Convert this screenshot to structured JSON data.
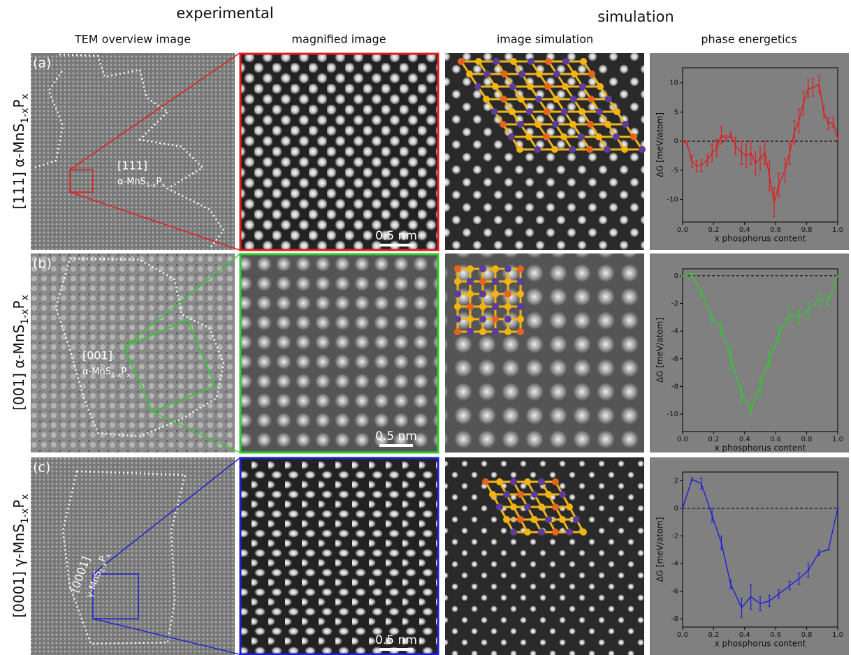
{
  "header": {
    "experimental": "experimental",
    "simulation": "simulation"
  },
  "columns": [
    "TEM overview image",
    "magnified image",
    "image simulation",
    "phase energetics"
  ],
  "rows": [
    {
      "panel": "(a)",
      "label": [
        "[111] α-MnS",
        "1-x",
        "P",
        "x"
      ],
      "inset_direction": "[111]",
      "inset_phase": [
        "α-MnS",
        "1-x",
        "P",
        "x"
      ],
      "scale_bar": "0.5 nm"
    },
    {
      "panel": "(b)",
      "label": [
        "[001] α-MnS",
        "1-x",
        "P",
        "x"
      ],
      "inset_direction": "[001]",
      "inset_phase": [
        "α-MnS",
        "1-x",
        "P",
        "x"
      ],
      "scale_bar": "0.5 nm"
    },
    {
      "panel": "(c)",
      "label": [
        "[0001] γ-MnS",
        "1-x",
        "P",
        "x"
      ],
      "inset_direction": "[0001]",
      "inset_phase": [
        "γ-MnS",
        "1-x",
        "P",
        "x"
      ],
      "scale_bar": "0.5 nm"
    }
  ],
  "chart_data": [
    {
      "type": "errorbar-line",
      "color": "#e41a1c",
      "xlabel": "x phosphorus content",
      "ylabel": "ΔG [meV/atom]",
      "x": [
        0,
        0.03,
        0.06,
        0.09,
        0.12,
        0.16,
        0.19,
        0.22,
        0.25,
        0.28,
        0.31,
        0.34,
        0.38,
        0.41,
        0.44,
        0.47,
        0.5,
        0.53,
        0.56,
        0.59,
        0.62,
        0.66,
        0.69,
        0.72,
        0.75,
        0.78,
        0.81,
        0.84,
        0.88,
        0.91,
        0.94,
        0.97,
        1.0
      ],
      "values": [
        0,
        -0.5,
        -3.5,
        -4.3,
        -4.2,
        -3.2,
        -2,
        -1.2,
        1,
        0.5,
        1,
        -0.8,
        -2,
        -2.5,
        -2,
        -3.8,
        -3,
        -2,
        -6,
        -10.5,
        -7.5,
        -5,
        -2,
        1.5,
        3.5,
        6.5,
        9,
        9.2,
        9.7,
        5,
        3,
        3.2,
        0.5
      ],
      "errors": [
        0,
        0.5,
        1,
        1,
        1,
        1,
        1.5,
        1.5,
        1.5,
        0.5,
        0.5,
        1.5,
        2,
        2,
        2,
        2,
        2,
        2,
        2.5,
        2.5,
        2,
        2,
        2,
        2,
        2,
        2,
        1.5,
        1.5,
        1.5,
        1,
        1,
        0.8,
        0.3
      ],
      "hline": 0,
      "xlim": [
        0,
        1
      ],
      "ylim": [
        -13.9,
        12.6
      ],
      "xticks": [
        {
          "value": 0,
          "label": "0.0"
        },
        0.2,
        0.4,
        0.6,
        0.8,
        {
          "value": 1,
          "label": "1.0"
        }
      ],
      "yticks": [
        -10,
        -5,
        0,
        5,
        10
      ]
    },
    {
      "type": "errorbar-line",
      "color": "#2ecc2e",
      "xlabel": "x phosphorus content",
      "ylabel": "ΔG [meV/atom]",
      "x": [
        0,
        0.06,
        0.12,
        0.19,
        0.25,
        0.31,
        0.38,
        0.44,
        0.5,
        0.56,
        0.62,
        0.69,
        0.75,
        0.81,
        0.88,
        0.94,
        1.0
      ],
      "values": [
        0,
        0.1,
        -1.2,
        -3.1,
        -3.8,
        -6,
        -8.5,
        -9.7,
        -8,
        -6,
        -4.3,
        -2.8,
        -3,
        -2.5,
        -1.7,
        -1.8,
        0
      ],
      "errors": [
        0,
        0.1,
        0.3,
        0.3,
        0.4,
        0.8,
        0.7,
        0.4,
        0.7,
        0.6,
        0.5,
        0.6,
        0.5,
        0.6,
        0.5,
        0.3,
        0
      ],
      "hline": 0,
      "xlim": [
        0,
        1
      ],
      "ylim": [
        -11.26,
        0.5
      ],
      "xticks": [
        {
          "value": 0,
          "label": "0.0"
        },
        0.2,
        0.4,
        0.6,
        0.8,
        {
          "value": 1,
          "label": "1.0"
        }
      ],
      "yticks": [
        -10,
        -8,
        -6,
        -4,
        -2,
        0
      ]
    },
    {
      "type": "errorbar-line",
      "color": "#1f1fd6",
      "xlabel": "x phosphorus content",
      "ylabel": "ΔG [meV/atom]",
      "x": [
        0,
        0.06,
        0.12,
        0.19,
        0.25,
        0.31,
        0.38,
        0.44,
        0.5,
        0.56,
        0.62,
        0.69,
        0.75,
        0.81,
        0.88,
        0.94,
        1.0
      ],
      "values": [
        0,
        2.1,
        1.8,
        -0.5,
        -2.5,
        -5.5,
        -7.2,
        -6.4,
        -6.9,
        -6.7,
        -6.2,
        -5.6,
        -5.1,
        -4.5,
        -3.2,
        -3,
        0
      ],
      "errors": [
        0,
        0.1,
        0.4,
        0.5,
        0.5,
        0.3,
        0.7,
        0.9,
        0.5,
        0.4,
        0.3,
        0.3,
        0.4,
        0.5,
        0.2,
        0,
        0
      ],
      "hline": 0,
      "xlim": [
        0,
        1
      ],
      "ylim": [
        -8.6,
        2.63
      ],
      "xticks": [
        {
          "value": 0,
          "label": "0.0"
        },
        0.2,
        0.4,
        0.6,
        0.8,
        {
          "value": 1,
          "label": "1.0"
        }
      ],
      "yticks": [
        -8,
        -6,
        -4,
        -2,
        0,
        2
      ]
    }
  ]
}
